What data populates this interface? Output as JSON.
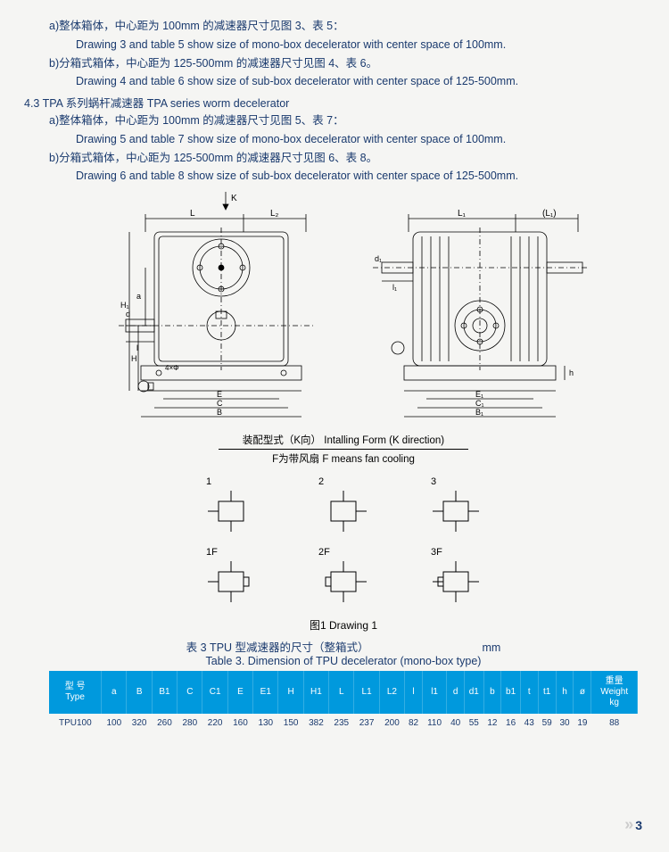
{
  "text": {
    "a1_cn": "a)整体箱体，中心距为 100mm 的减速器尺寸见图 3、表 5：",
    "a1_en": "Drawing 3 and table 5 show size of mono-box decelerator with center space of 100mm.",
    "b1_cn": "b)分箱式箱体，中心距为 125-500mm 的减速器尺寸见图 4、表 6。",
    "b1_en": "Drawing 4 and table 6 show size of sub-box decelerator with center space of 125-500mm.",
    "sec43": "4.3 TPA 系列蜗杆减速器  TPA series worm decelerator",
    "a2_cn": "a)整体箱体，中心距为 100mm 的减速器尺寸见图 5、表 7：",
    "a2_en": "Drawing 5 and table 7 show size of mono-box decelerator with center space of 100mm.",
    "b2_cn": "b)分箱式箱体，中心距为 125-500mm 的减速器尺寸见图 6、表 8。",
    "b2_en": "Drawing 6 and table 8 show size of sub-box decelerator with center space of 125-500mm."
  },
  "install": {
    "line1": "装配型式（K向） Intalling Form (K direction)",
    "line2": "F为带风扇   F means fan cooling",
    "labels": [
      "1",
      "2",
      "3",
      "1F",
      "2F",
      "3F"
    ]
  },
  "caption": "图1    Drawing 1",
  "tableTitle": {
    "cn": "表 3   TPU 型减速器的尺寸（整箱式）",
    "unit": "mm",
    "en": "Table 3. Dimension of TPU decelerator (mono-box type)"
  },
  "table": {
    "headers": [
      "型 号\nType",
      "a",
      "B",
      "B1",
      "C",
      "C1",
      "E",
      "E1",
      "H",
      "H1",
      "L",
      "L1",
      "L2",
      "l",
      "l1",
      "d",
      "d1",
      "b",
      "b1",
      "t",
      "t1",
      "h",
      "ø",
      "重量\nWeight\nkg"
    ],
    "row": [
      "TPU100",
      "100",
      "320",
      "260",
      "280",
      "220",
      "160",
      "130",
      "150",
      "382",
      "235",
      "237",
      "200",
      "82",
      "110",
      "40",
      "55",
      "12",
      "16",
      "43",
      "59",
      "30",
      "19",
      "88"
    ]
  },
  "labels": {
    "K": "K",
    "L": "L",
    "L2s": "L₂",
    "L1": "L₁",
    "Lp": "(L₁)",
    "H1": "H₁",
    "H": "H",
    "a": "a",
    "d": "d",
    "d1": "d₁",
    "ls": "l",
    "l1": "l₁",
    "E": "E",
    "C": "C",
    "B": "B",
    "E1": "E₁",
    "C1": "C₁",
    "B1": "B₁",
    "h": "h",
    "phi": "4×Φ"
  },
  "pageNum": "3"
}
